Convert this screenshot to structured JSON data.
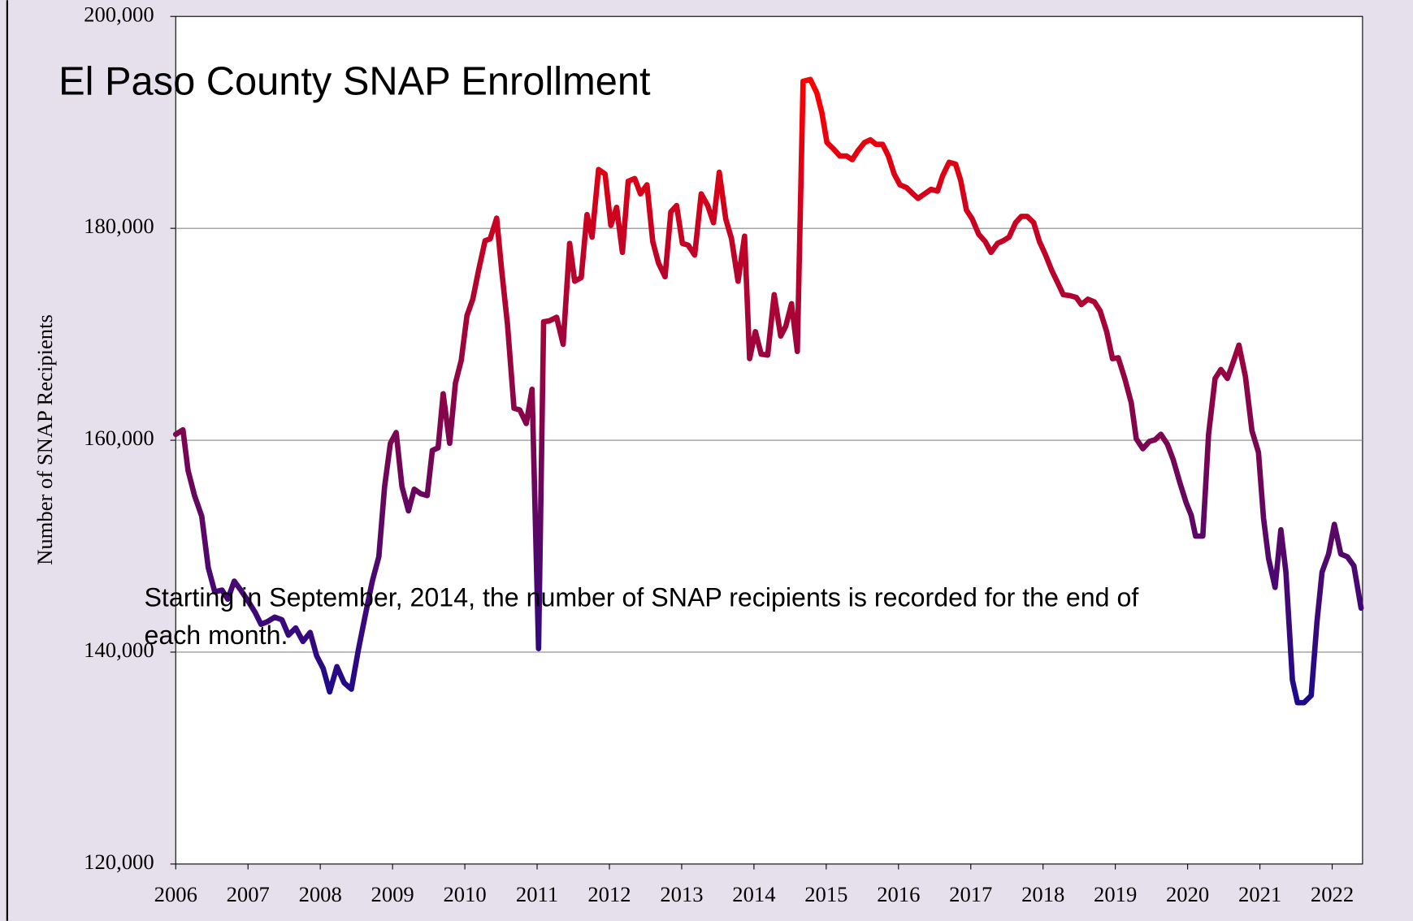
{
  "chart_data": {
    "type": "line",
    "title": "El Paso County SNAP Enrollment",
    "ylabel": "Number of SNAP Recipients",
    "annotation": [
      "Starting in September, 2014, the number of SNAP recipients is recorded for the end of",
      "each month."
    ],
    "xlim": [
      2006,
      2022.42
    ],
    "xticks": [
      2006,
      2007,
      2008,
      2009,
      2010,
      2011,
      2012,
      2013,
      2014,
      2015,
      2016,
      2017,
      2018,
      2019,
      2020,
      2021,
      2022
    ],
    "ylim": [
      120000,
      200000
    ],
    "yticks": [
      {
        "value": 120000,
        "label": "120,000"
      },
      {
        "value": 140000,
        "label": "140,000"
      },
      {
        "value": 160000,
        "label": "160,000"
      },
      {
        "value": 180000,
        "label": "180,000"
      },
      {
        "value": 200000,
        "label": "200,000"
      }
    ],
    "grid": true,
    "gradient": {
      "low": "#1c0a8c",
      "high": "#ff0000"
    },
    "x": [
      2006.0,
      2006.1,
      2006.17,
      2006.26,
      2006.36,
      2006.45,
      2006.54,
      2006.64,
      2006.72,
      2006.81,
      2006.9,
      2007.0,
      2007.1,
      2007.18,
      2007.27,
      2007.37,
      2007.47,
      2007.56,
      2007.66,
      2007.76,
      2007.86,
      2007.95,
      2008.04,
      2008.13,
      2008.23,
      2008.33,
      2008.43,
      2008.53,
      2008.63,
      2008.72,
      2008.81,
      2008.89,
      2008.97,
      2009.05,
      2009.13,
      2009.22,
      2009.3,
      2009.39,
      2009.48,
      2009.55,
      2009.63,
      2009.7,
      2009.79,
      2009.87,
      2009.95,
      2010.03,
      2010.11,
      2010.19,
      2010.28,
      2010.35,
      2010.44,
      2010.51,
      2010.59,
      2010.68,
      2010.76,
      2010.85,
      2010.93,
      2011.02,
      2011.09,
      2011.17,
      2011.27,
      2011.36,
      2011.45,
      2011.52,
      2011.61,
      2011.69,
      2011.76,
      2011.85,
      2011.94,
      2012.02,
      2012.1,
      2012.18,
      2012.26,
      2012.35,
      2012.43,
      2012.52,
      2012.6,
      2012.68,
      2012.77,
      2012.85,
      2012.93,
      2013.01,
      2013.09,
      2013.18,
      2013.27,
      2013.36,
      2013.44,
      2013.52,
      2013.61,
      2013.69,
      2013.78,
      2013.87,
      2013.94,
      2014.02,
      2014.1,
      2014.19,
      2014.28,
      2014.37,
      2014.44,
      2014.52,
      2014.6,
      2014.68,
      2014.78,
      2014.87,
      2014.94,
      2015.01,
      2015.1,
      2015.19,
      2015.28,
      2015.36,
      2015.44,
      2015.53,
      2015.61,
      2015.69,
      2015.78,
      2015.86,
      2015.94,
      2016.02,
      2016.11,
      2016.2,
      2016.27,
      2016.36,
      2016.45,
      2016.54,
      2016.61,
      2016.7,
      2016.79,
      2016.86,
      2016.94,
      2017.02,
      2017.11,
      2017.2,
      2017.28,
      2017.37,
      2017.45,
      2017.53,
      2017.62,
      2017.7,
      2017.78,
      2017.87,
      2017.95,
      2018.03,
      2018.12,
      2018.21,
      2018.28,
      2018.37,
      2018.46,
      2018.53,
      2018.62,
      2018.71,
      2018.79,
      2018.88,
      2018.96,
      2019.04,
      2019.13,
      2019.22,
      2019.29,
      2019.38,
      2019.47,
      2019.55,
      2019.63,
      2019.72,
      2019.8,
      2019.89,
      2019.98,
      2020.05,
      2020.11,
      2020.21,
      2020.29,
      2020.38,
      2020.46,
      2020.55,
      2020.63,
      2020.71,
      2020.8,
      2020.89,
      2020.98,
      2021.05,
      2021.12,
      2021.21,
      2021.29,
      2021.36,
      2021.45,
      2021.52,
      2021.61,
      2021.71,
      2021.79,
      2021.86,
      2021.95,
      2022.03,
      2022.12,
      2022.21,
      2022.3,
      2022.4
    ],
    "values": [
      160560,
      160980,
      157160,
      154780,
      152825,
      147980,
      145685,
      145855,
      145000,
      146700,
      145855,
      144835,
      143730,
      142625,
      142880,
      143305,
      143050,
      141605,
      142285,
      141010,
      141860,
      139650,
      138460,
      136250,
      138630,
      137100,
      136505,
      140330,
      143730,
      146700,
      149000,
      155630,
      159710,
      160730,
      155630,
      153335,
      155375,
      154950,
      154780,
      159030,
      159285,
      164385,
      159710,
      165405,
      167530,
      171780,
      173310,
      176030,
      178835,
      179005,
      180960,
      176030,
      170930,
      163025,
      162855,
      161580,
      164810,
      140330,
      171185,
      171270,
      171610,
      169060,
      178580,
      175010,
      175350,
      181300,
      179175,
      185550,
      185125,
      180280,
      181980,
      177730,
      184445,
      184700,
      183255,
      184105,
      178750,
      176710,
      175435,
      181555,
      182150,
      178580,
      178410,
      177475,
      183255,
      182150,
      180535,
      185295,
      180875,
      179005,
      175010,
      179260,
      167700,
      170250,
      168125,
      168040,
      173735,
      169825,
      170760,
      172885,
      168380,
      193880,
      194050,
      192775,
      190905,
      188100,
      187505,
      186825,
      186825,
      186485,
      187335,
      188100,
      188355,
      187930,
      187930,
      186825,
      185125,
      184105,
      183850,
      183255,
      182830,
      183255,
      183680,
      183510,
      184955,
      186230,
      186060,
      184530,
      181725,
      180875,
      179430,
      178750,
      177730,
      178580,
      178835,
      179175,
      180535,
      181130,
      181130,
      180535,
      178750,
      177560,
      176030,
      174755,
      173735,
      173650,
      173480,
      172800,
      173310,
      173055,
      172205,
      170250,
      167700,
      167785,
      165830,
      163535,
      160135,
      159200,
      159880,
      160050,
      160560,
      159625,
      158180,
      156055,
      154100,
      152910,
      150955,
      150955,
      160560,
      165830,
      166680,
      165830,
      167360,
      168975,
      166000,
      160900,
      158860,
      152655,
      148830,
      146110,
      151550,
      147555,
      137355,
      135230,
      135230,
      135910,
      142880,
      147555,
      149255,
      152060,
      149255,
      149000,
      148150,
      144155
    ]
  }
}
